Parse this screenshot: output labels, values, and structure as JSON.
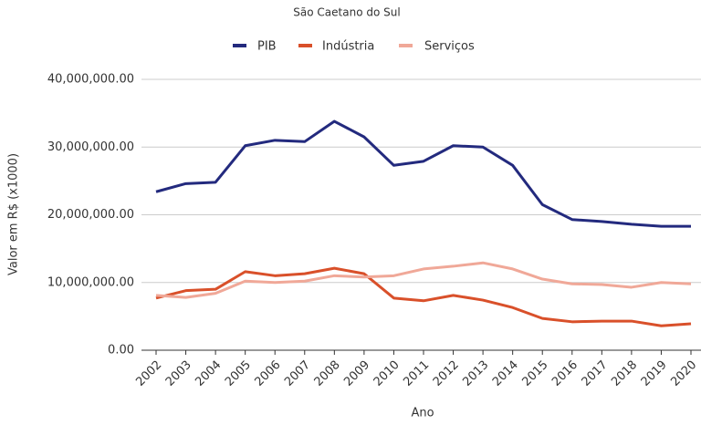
{
  "chart_data": {
    "type": "line",
    "title": "São Caetano do Sul",
    "xlabel": "Ano",
    "ylabel": "Valor em R$ (x1000)",
    "categories": [
      "2002",
      "2003",
      "2004",
      "2005",
      "2006",
      "2007",
      "2008",
      "2009",
      "2010",
      "2011",
      "2012",
      "2013",
      "2014",
      "2015",
      "2016",
      "2017",
      "2018",
      "2019",
      "2020"
    ],
    "series": [
      {
        "name": "PIB",
        "color": "#232a7e",
        "values": [
          23400000,
          24600000,
          24800000,
          30200000,
          31000000,
          30800000,
          33800000,
          31500000,
          27300000,
          27900000,
          30200000,
          30000000,
          27300000,
          21500000,
          19300000,
          19000000,
          18600000,
          18300000,
          18300000
        ]
      },
      {
        "name": "Indústria",
        "color": "#d9502a",
        "values": [
          7700000,
          8800000,
          9000000,
          11600000,
          11000000,
          11300000,
          12100000,
          11300000,
          7700000,
          7300000,
          8100000,
          7400000,
          6300000,
          4700000,
          4200000,
          4300000,
          4300000,
          3600000,
          3900000
        ]
      },
      {
        "name": "Serviços",
        "color": "#f0a898",
        "values": [
          8100000,
          7800000,
          8400000,
          10200000,
          10000000,
          10200000,
          11000000,
          10800000,
          11000000,
          12000000,
          12400000,
          12900000,
          12000000,
          10500000,
          9800000,
          9700000,
          9300000,
          10000000,
          9800000
        ]
      }
    ],
    "ylim": [
      0,
      40000000
    ],
    "yticks": [
      {
        "value": 0,
        "label": "0.00"
      },
      {
        "value": 10000000,
        "label": "10,000,000.00"
      },
      {
        "value": 20000000,
        "label": "20,000,000.00"
      },
      {
        "value": 30000000,
        "label": "30,000,000.00"
      },
      {
        "value": 40000000,
        "label": "40,000,000.00"
      }
    ],
    "grid": true,
    "legend": "top"
  }
}
